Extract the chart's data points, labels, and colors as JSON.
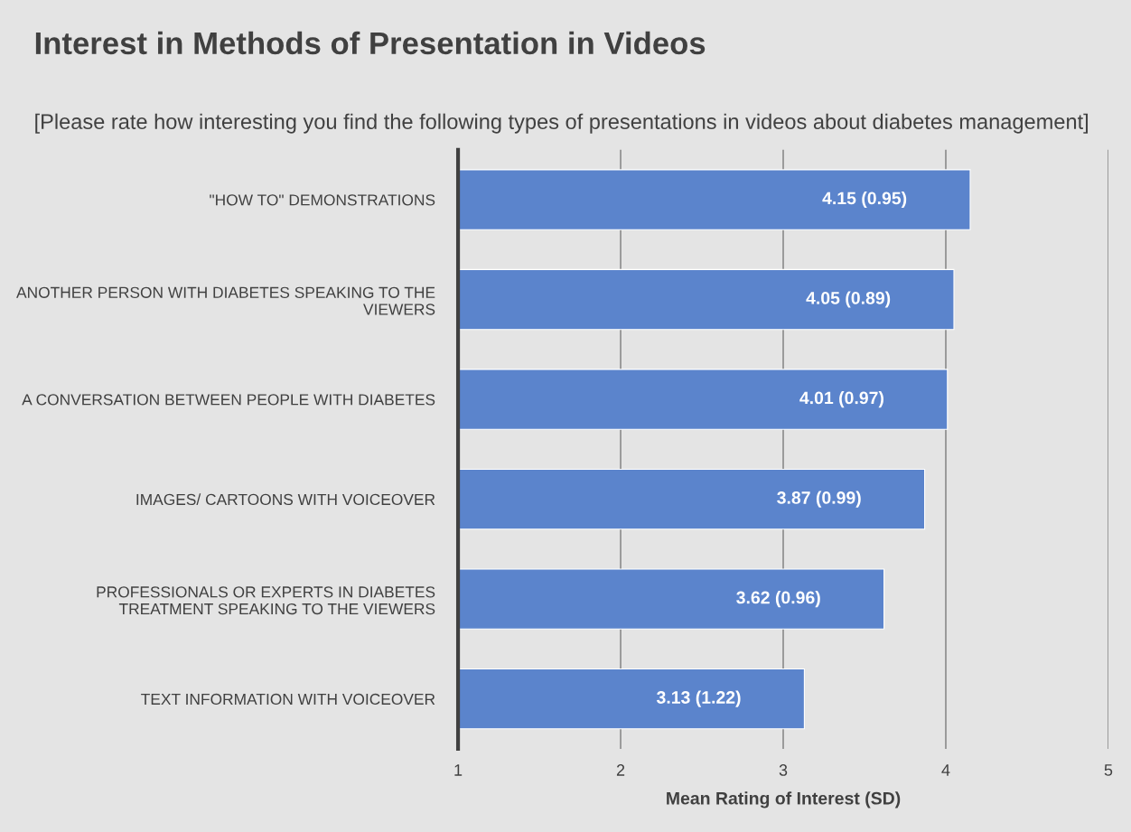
{
  "chart_data": {
    "type": "bar",
    "orientation": "horizontal",
    "title": "Interest in Methods of Presentation in Videos",
    "subtitle": "[Please rate how interesting you find the following types of presentations in videos about diabetes management]",
    "xlabel": "Mean Rating of Interest (SD)",
    "categories": [
      "\"HOW TO\" DEMONSTRATIONS",
      "ANOTHER PERSON WITH DIABETES SPEAKING TO THE VIEWERS",
      "A CONVERSATION BETWEEN PEOPLE WITH DIABETES",
      "IMAGES/ CARTOONS WITH VOICEOVER",
      "PROFESSIONALS OR EXPERTS IN DIABETES TREATMENT SPEAKING TO THE VIEWERS",
      "TEXT INFORMATION WITH VOICEOVER"
    ],
    "values": [
      4.15,
      4.05,
      4.01,
      3.87,
      3.62,
      3.13
    ],
    "value_labels": [
      "4.15 (0.95)",
      "4.05 (0.89)",
      "4.01 (0.97)",
      "3.87 (0.99)",
      "3.62 (0.96)",
      "3.13 (1.22)"
    ],
    "color": "#5b84cc",
    "xlim": [
      1,
      5
    ],
    "xticks": [
      1,
      2,
      3,
      4,
      5
    ],
    "grid": "x",
    "legend": false
  }
}
